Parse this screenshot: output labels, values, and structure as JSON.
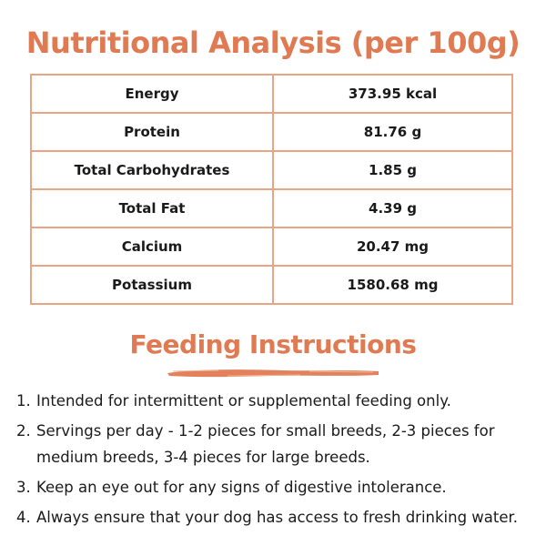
{
  "title": "Nutritional Analysis (per 100g)",
  "nutrition": [
    {
      "name": "Energy",
      "value": "373.95 kcal"
    },
    {
      "name": "Protein",
      "value": "81.76 g"
    },
    {
      "name": "Total Carbohydrates",
      "value": "1.85 g"
    },
    {
      "name": "Total Fat",
      "value": "4.39 g"
    },
    {
      "name": "Calcium",
      "value": "20.47 mg"
    },
    {
      "name": "Potassium",
      "value": "1580.68 mg"
    }
  ],
  "feeding": {
    "title": "Feeding Instructions",
    "items": [
      {
        "num": "1.",
        "text": "Intended for intermittent or supplemental feeding only."
      },
      {
        "num": "2.",
        "text": "Servings per day - 1-2 pieces for small breeds, 2-3 pieces for medium breeds, 3-4 pieces for large breeds."
      },
      {
        "num": "3.",
        "text": "Keep an eye out for any signs of digestive intolerance."
      },
      {
        "num": "4.",
        "text": "Always ensure that your dog has access to fresh drinking water."
      }
    ]
  },
  "colors": {
    "accent": "#e07a52",
    "table_border": "#e8a585",
    "text": "#1a1a1a"
  }
}
